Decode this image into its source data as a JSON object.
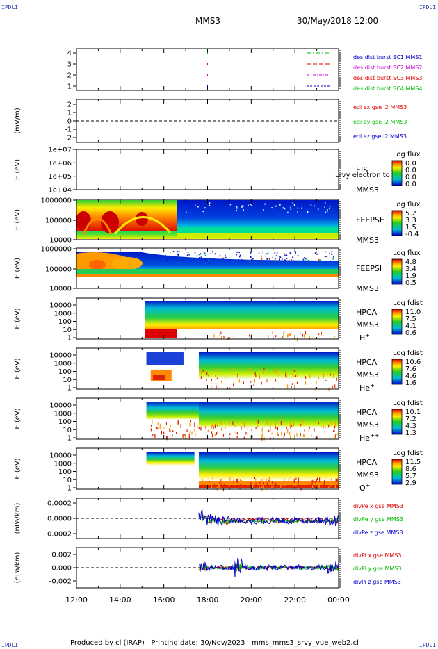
{
  "header": {
    "corner_label": "IPDLI",
    "spacecraft": "MMS3",
    "datetime": "30/May/2018 12:00"
  },
  "footer": {
    "text": "Produced by cl (IRAP)   Printing date: 30/Nov/2023   mms_mms3_srvy_vue_web2.cl"
  },
  "colors": {
    "red": "#e00000",
    "green": "#00bb00",
    "blue": "#0000cc",
    "magenta": "#cc00cc"
  },
  "x_axis": {
    "ticks": [
      "12:00",
      "14:00",
      "16:00",
      "18:00",
      "20:00",
      "22:00",
      "00:00"
    ]
  },
  "chart_data": [
    {
      "type": "line",
      "id": "burst",
      "yticks": [
        "4",
        "3",
        "2",
        "1"
      ],
      "ylabel": "",
      "legend": [
        {
          "text": "des dist burst SC1 MMS1",
          "color": "#0000cc"
        },
        {
          "text": "des dist burst SC2 MMS2",
          "color": "#cc00cc"
        },
        {
          "text": "des dist burst SC3 MMS3",
          "color": "#e00000"
        },
        {
          "text": "des dist burst SC4 MMS4",
          "color": "#00bb00"
        }
      ]
    },
    {
      "type": "line",
      "id": "edi",
      "ylabel": "(mV/m)",
      "yticks": [
        "2",
        "1",
        "0",
        "-1",
        "-2"
      ],
      "legend": [
        {
          "text": "edi ex gse l2 MMS3",
          "color": "#e00000"
        },
        {
          "text": "edi ey gse l2 MMS3",
          "color": "#00bb00"
        },
        {
          "text": "edi ez gse l2 MMS3",
          "color": "#0000cc"
        }
      ]
    },
    {
      "type": "heatmap",
      "id": "eis",
      "ylabel": "E (eV)",
      "yticks": [
        "1e+07",
        "1e+06",
        "1e+05",
        "1e+04"
      ],
      "side_labels": [
        "EIS",
        "MMS3"
      ],
      "overlap_text": "Lrvy electron to",
      "colorbar": {
        "title": "Log flux",
        "ticks": [
          "0.0",
          "0.0",
          "0.0",
          "0.0"
        ]
      }
    },
    {
      "type": "heatmap",
      "id": "feepse",
      "ylabel": "E (eV)",
      "yticks": [
        "1000000",
        "100000",
        "10000"
      ],
      "side_labels": [
        "FEEPSE",
        "MMS3"
      ],
      "colorbar": {
        "title": "Log flux",
        "ticks": [
          "5.2",
          "3.3",
          "1.5",
          "-0.4"
        ]
      }
    },
    {
      "type": "heatmap",
      "id": "feepsi",
      "ylabel": "E (eV)",
      "yticks": [
        "1000000",
        "100000",
        "10000"
      ],
      "side_labels": [
        "FEEPSI",
        "MMS3"
      ],
      "colorbar": {
        "title": "Log flux",
        "ticks": [
          "4.8",
          "3.4",
          "1.9",
          "0.5"
        ]
      }
    },
    {
      "type": "heatmap",
      "id": "hpca_h",
      "ylabel": "E (eV)",
      "yticks": [
        "10000",
        "1000",
        "100",
        "10",
        "1"
      ],
      "side_labels": [
        "HPCA",
        "MMS3"
      ],
      "species": "H",
      "species_sup": "+",
      "colorbar": {
        "title": "Log fdist",
        "ticks": [
          "11.0",
          "7.5",
          "4.1",
          "0.6"
        ]
      }
    },
    {
      "type": "heatmap",
      "id": "hpca_he",
      "ylabel": "E (eV)",
      "yticks": [
        "10000",
        "1000",
        "100",
        "10",
        "1"
      ],
      "side_labels": [
        "HPCA",
        "MMS3"
      ],
      "species": "He",
      "species_sup": "+",
      "colorbar": {
        "title": "Log fdist",
        "ticks": [
          "10.6",
          "7.6",
          "4.6",
          "1.6"
        ]
      }
    },
    {
      "type": "heatmap",
      "id": "hpca_hepp",
      "ylabel": "E (eV)",
      "yticks": [
        "10000",
        "1000",
        "100",
        "10",
        "1"
      ],
      "side_labels": [
        "HPCA",
        "MMS3"
      ],
      "species": "He",
      "species_sup": "++",
      "colorbar": {
        "title": "Log fdist",
        "ticks": [
          "10.1",
          "7.2",
          "4.3",
          "1.3"
        ]
      }
    },
    {
      "type": "heatmap",
      "id": "hpca_o",
      "ylabel": "E (eV)",
      "yticks": [
        "10000",
        "1000",
        "100",
        "10",
        "1"
      ],
      "side_labels": [
        "HPCA",
        "MMS3"
      ],
      "species": "O",
      "species_sup": "+",
      "colorbar": {
        "title": "Log fdist",
        "ticks": [
          "11.5",
          "8.6",
          "5.7",
          "2.9"
        ]
      }
    },
    {
      "type": "line",
      "id": "divpe",
      "ylabel": "(nPa/km)",
      "yticks": [
        "0.0002",
        "0.0000",
        "-0.0002"
      ],
      "legend": [
        {
          "text": "divPe x gse MMS3",
          "color": "#e00000"
        },
        {
          "text": "divPe y gse MMS3",
          "color": "#00bb00"
        },
        {
          "text": "divPe z gse MMS3",
          "color": "#0000cc"
        }
      ]
    },
    {
      "type": "line",
      "id": "divpi",
      "ylabel": "(nPa/km)",
      "yticks": [
        "0.002",
        "0.000",
        "-0.002"
      ],
      "legend": [
        {
          "text": "divPi x gse MMS3",
          "color": "#e00000"
        },
        {
          "text": "divPi y gse MMS3",
          "color": "#00bb00"
        },
        {
          "text": "divPi z gse MMS3",
          "color": "#0000cc"
        }
      ]
    }
  ]
}
